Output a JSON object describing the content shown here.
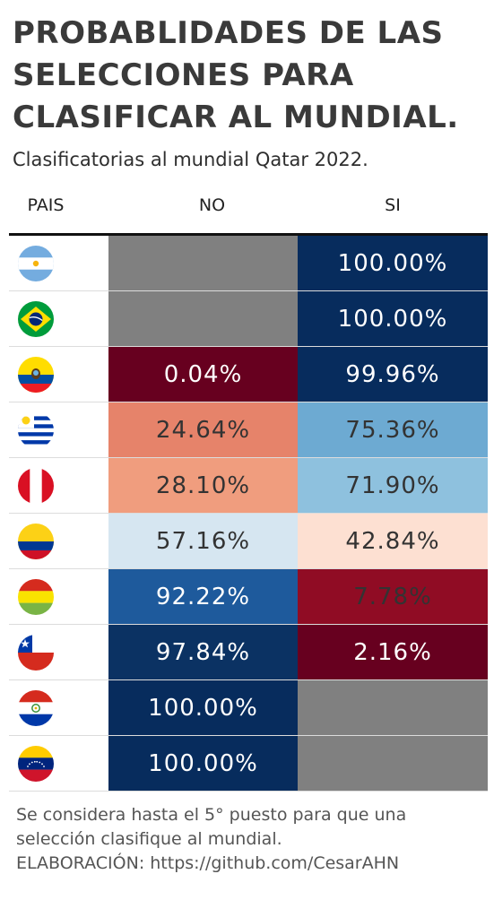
{
  "title_lines": [
    "PROBABLIDADES DE LAS",
    "SELECCIONES PARA",
    "CLASIFICAR AL MUNDIAL."
  ],
  "subtitle": "Clasificatorias al mundial Qatar 2022.",
  "headers": {
    "country": "PAIS",
    "no": "NO",
    "yes": "SI"
  },
  "footer": [
    "Se considera hasta el 5° puesto para que una",
    "selección clasifique al mundial.",
    "ELABORACIÓN: https://github.com/CesarAHN"
  ],
  "chart_data": {
    "type": "table",
    "columns": [
      "PAIS",
      "NO",
      "SI"
    ],
    "rows": [
      {
        "flag": "argentina-flag-icon",
        "no": null,
        "no_label": "",
        "yes": 100.0,
        "yes_label": "100.00%"
      },
      {
        "flag": "brazil-flag-icon",
        "no": null,
        "no_label": "",
        "yes": 100.0,
        "yes_label": "100.00%"
      },
      {
        "flag": "ecuador-flag-icon",
        "no": 0.04,
        "no_label": "0.04%",
        "yes": 99.96,
        "yes_label": "99.96%"
      },
      {
        "flag": "uruguay-flag-icon",
        "no": 24.64,
        "no_label": "24.64%",
        "yes": 75.36,
        "yes_label": "75.36%"
      },
      {
        "flag": "peru-flag-icon",
        "no": 28.1,
        "no_label": "28.10%",
        "yes": 71.9,
        "yes_label": "71.90%"
      },
      {
        "flag": "colombia-flag-icon",
        "no": 57.16,
        "no_label": "57.16%",
        "yes": 42.84,
        "yes_label": "42.84%"
      },
      {
        "flag": "bolivia-flag-icon",
        "no": 92.22,
        "no_label": "92.22%",
        "yes": 7.78,
        "yes_label": "7.78%"
      },
      {
        "flag": "chile-flag-icon",
        "no": 97.84,
        "no_label": "97.84%",
        "yes": 2.16,
        "yes_label": "2.16%"
      },
      {
        "flag": "paraguay-flag-icon",
        "no": 100.0,
        "no_label": "100.00%",
        "yes": null,
        "yes_label": ""
      },
      {
        "flag": "venezuela-flag-icon",
        "no": 100.0,
        "no_label": "100.00%",
        "yes": null,
        "yes_label": ""
      }
    ],
    "missing_color": "#808080",
    "colors": {
      "dark_red": "#67001f",
      "red": "#900c24",
      "salmon": "#e6836a",
      "light_salmon": "#f09d7e",
      "peach": "#fde0d2",
      "pale_blue": "#d6e6f1",
      "light_blue": "#8ec1de",
      "sky_blue": "#6daad2",
      "mid_blue": "#1e5a9c",
      "navy": "#0b3263",
      "dark_navy": "#072c5d"
    }
  }
}
